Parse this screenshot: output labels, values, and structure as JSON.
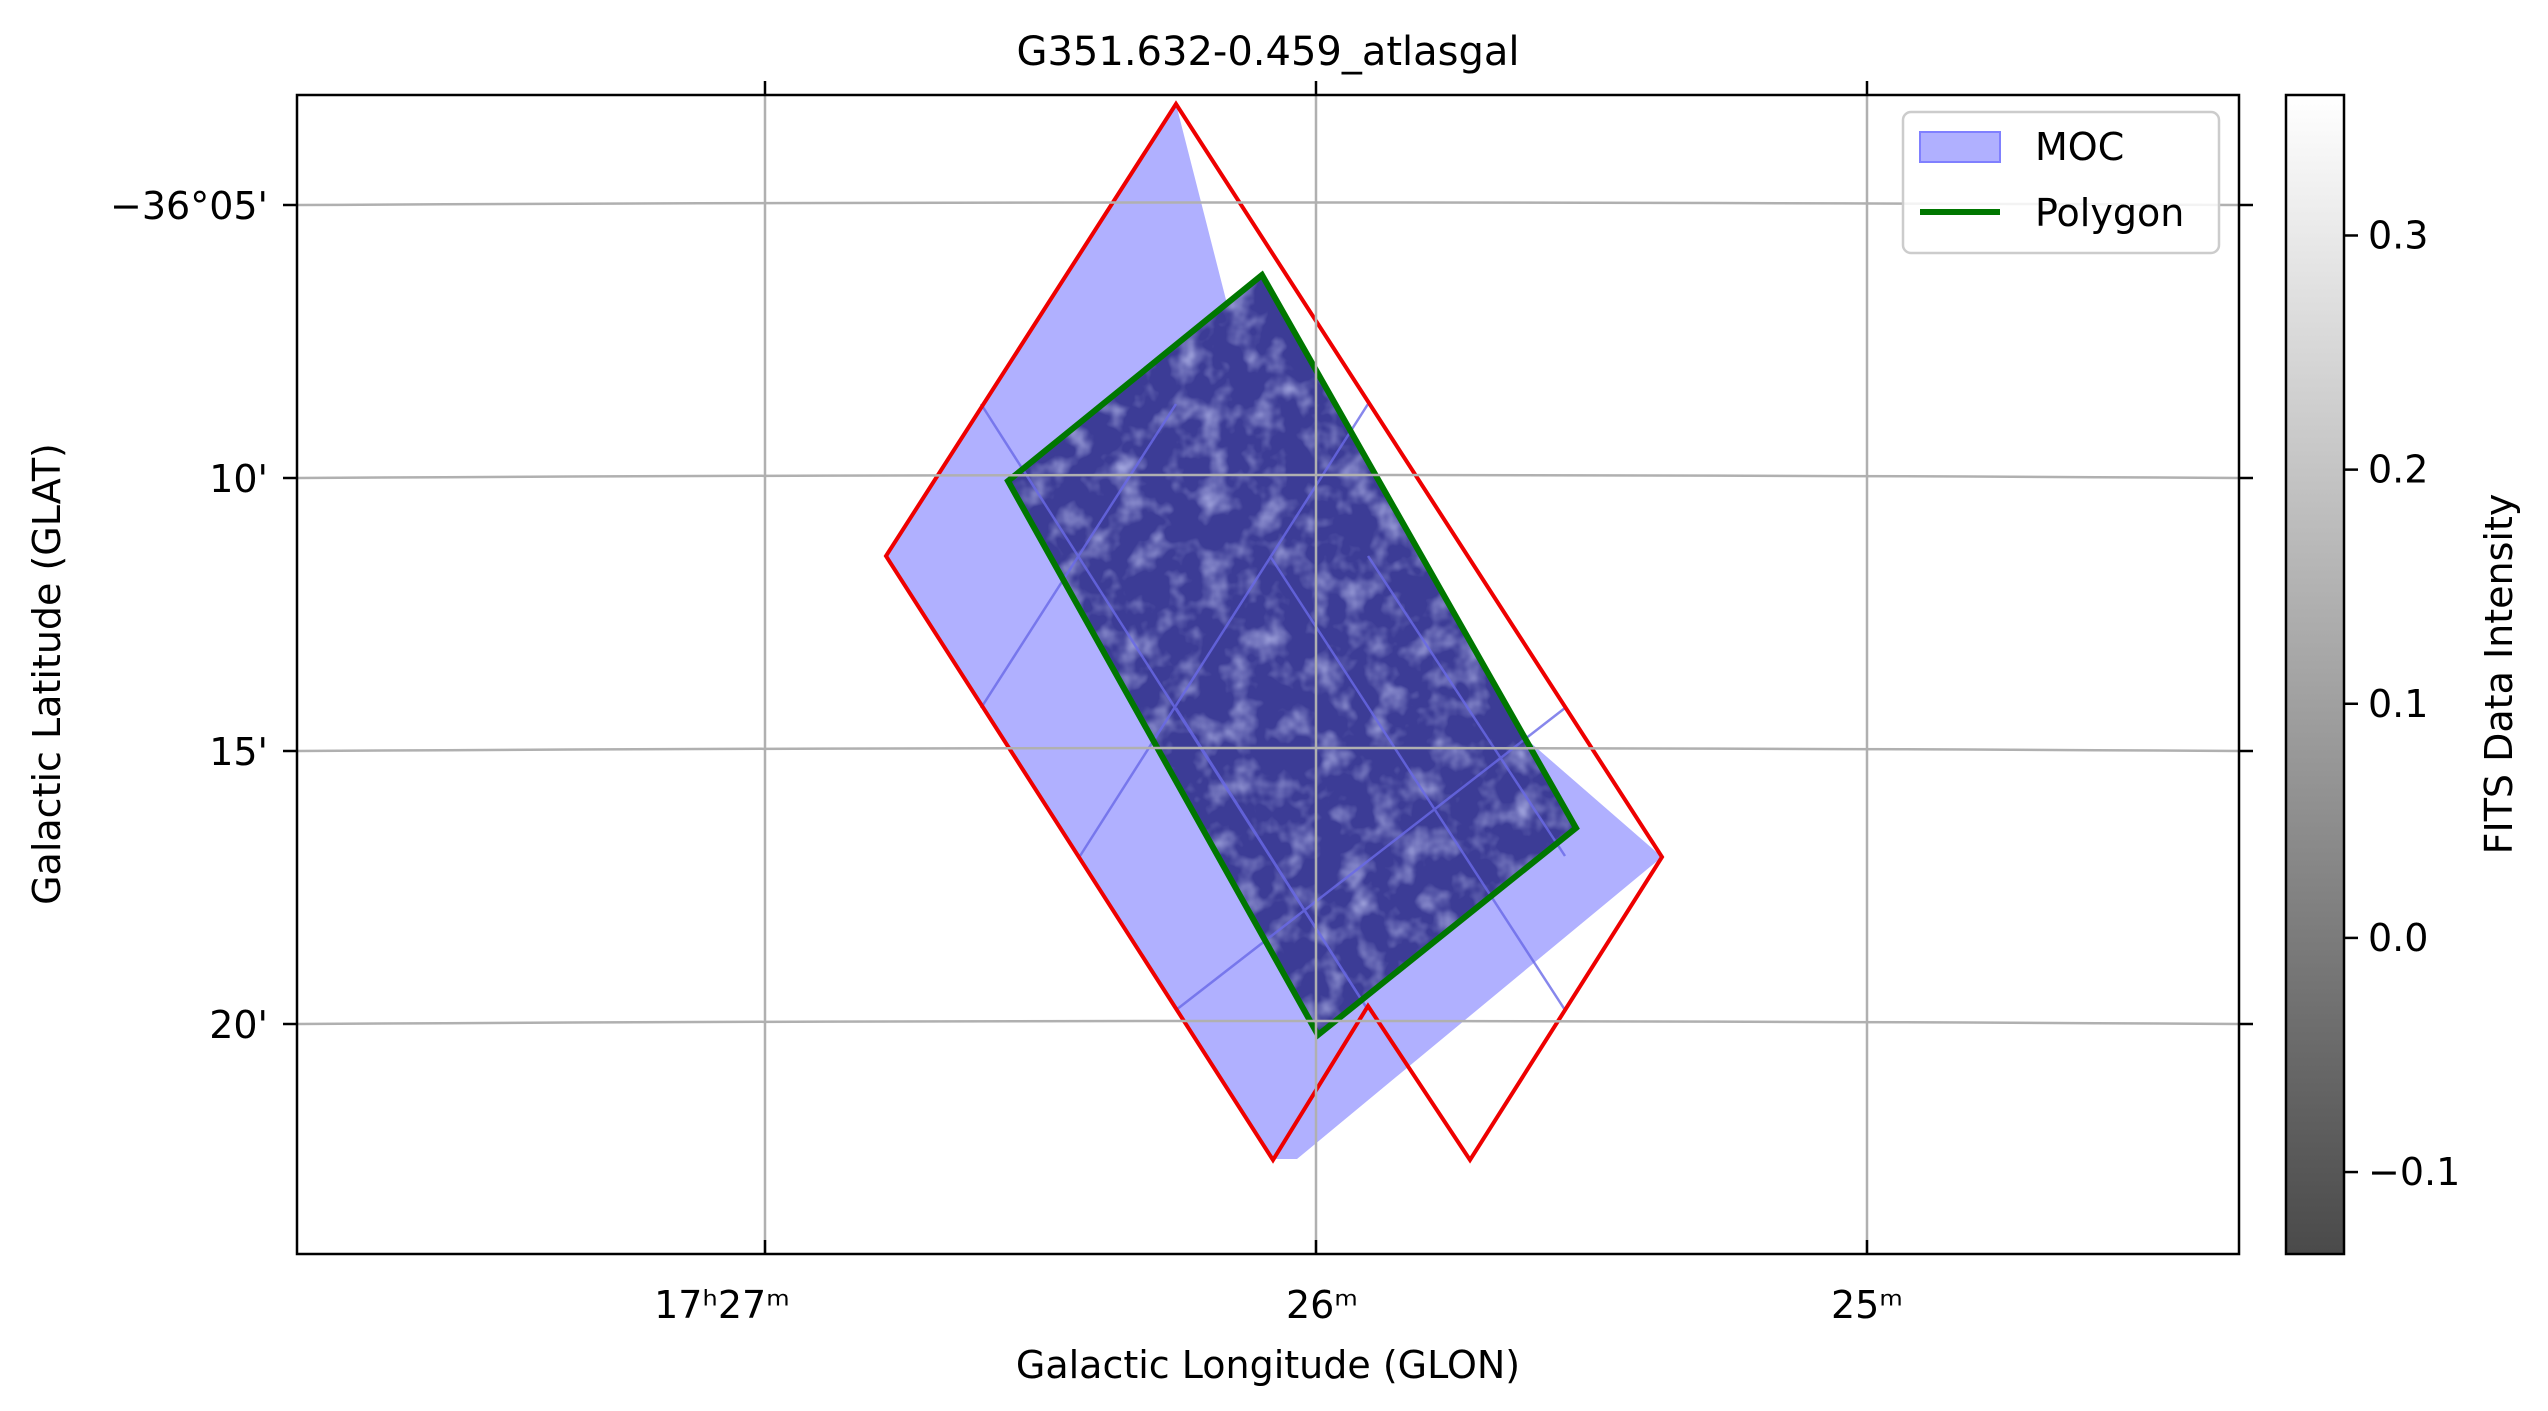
{
  "chart_data": {
    "type": "image",
    "title": "G351.632-0.459_atlasgal",
    "xlabel": "Galactic Longitude (GLON)",
    "ylabel": "Galactic Latitude (GLAT)",
    "x_ticks": [
      {
        "label": "17ʰ27ᵐ"
      },
      {
        "label": "26ᵐ"
      },
      {
        "label": "25ᵐ"
      }
    ],
    "y_ticks": [
      {
        "label": "−36°05'"
      },
      {
        "label": "10'"
      },
      {
        "label": "15'"
      },
      {
        "label": "20'"
      }
    ],
    "grid": true,
    "legend": {
      "placement": "top-right",
      "entries": [
        {
          "label": "MOC",
          "kind": "patch",
          "color": "#b0b0ff"
        },
        {
          "label": "Polygon",
          "kind": "line",
          "color": "#008000"
        }
      ]
    },
    "colorbar": {
      "label": "FITS Data Intensity",
      "range": [
        -0.135,
        0.36
      ],
      "ticks": [
        {
          "value": -0.1,
          "label": "−0.1"
        },
        {
          "value": 0.0,
          "label": "0.0"
        },
        {
          "value": 0.1,
          "label": "0.1"
        },
        {
          "value": 0.2,
          "label": "0.2"
        },
        {
          "value": 0.3,
          "label": "0.3"
        }
      ],
      "cmap": "gray"
    },
    "colors": {
      "moc_fill": "#b0b0ff",
      "moc_edge": "#ff0000",
      "polygon": "#008000",
      "data_tint": "#3c3c96",
      "grid": "#b0b0b0"
    }
  }
}
